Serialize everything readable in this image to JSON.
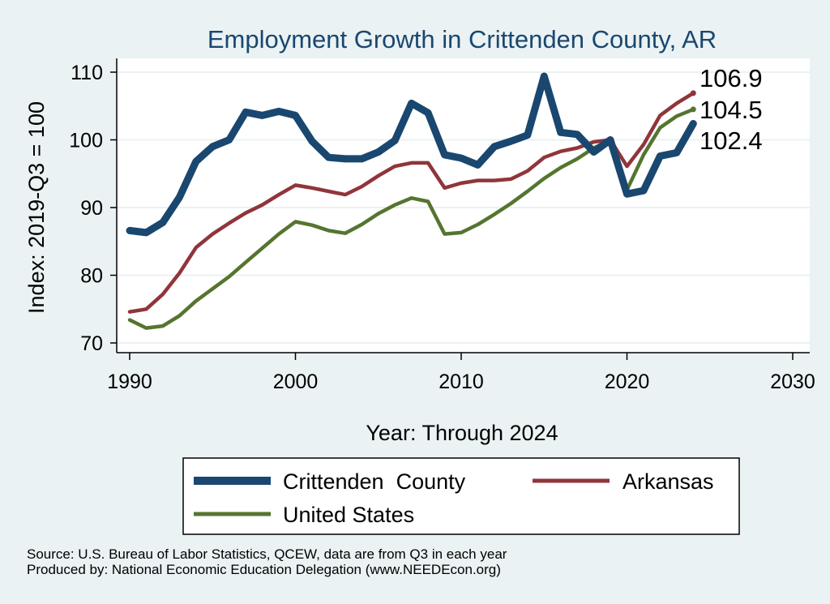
{
  "chart_data": {
    "type": "line",
    "title": "Employment Growth in Crittenden County, AR",
    "xlabel": "Year: Through 2024",
    "ylabel": "Index: 2019-Q3 = 100",
    "xlim": [
      1990,
      2030
    ],
    "ylim": [
      70,
      110
    ],
    "xticks": [
      1990,
      2000,
      2010,
      2020,
      2030
    ],
    "yticks": [
      70,
      80,
      90,
      100,
      110
    ],
    "grid": true,
    "legend_position": "bottom",
    "x": [
      1990,
      1991,
      1992,
      1993,
      1994,
      1995,
      1996,
      1997,
      1998,
      1999,
      2000,
      2001,
      2002,
      2003,
      2004,
      2005,
      2006,
      2007,
      2008,
      2009,
      2010,
      2011,
      2012,
      2013,
      2014,
      2015,
      2016,
      2017,
      2018,
      2019,
      2020,
      2021,
      2022,
      2023,
      2024
    ],
    "series": [
      {
        "name": "Crittenden  County",
        "color": "#1a476f",
        "values": [
          86.6,
          86.3,
          87.8,
          91.5,
          96.8,
          99.0,
          100.0,
          104.1,
          103.6,
          104.2,
          103.6,
          99.8,
          97.4,
          97.2,
          97.2,
          98.2,
          99.9,
          105.4,
          104.0,
          97.8,
          97.3,
          96.3,
          99.0,
          99.8,
          100.7,
          109.4,
          101.1,
          100.8,
          98.2,
          100.0,
          92.0,
          92.5,
          97.6,
          98.1,
          102.4
        ],
        "end_label": "102.4"
      },
      {
        "name": "Arkansas",
        "color": "#90353b",
        "values": [
          74.6,
          75.0,
          77.2,
          80.3,
          84.1,
          86.1,
          87.7,
          89.2,
          90.4,
          91.9,
          93.3,
          92.9,
          92.4,
          91.9,
          93.1,
          94.7,
          96.1,
          96.6,
          96.6,
          92.9,
          93.6,
          94.0,
          94.0,
          94.2,
          95.4,
          97.4,
          98.3,
          98.8,
          99.7,
          100.0,
          96.1,
          99.3,
          103.6,
          105.4,
          106.9
        ],
        "end_label": "106.9"
      },
      {
        "name": "United States",
        "color": "#55752f",
        "values": [
          73.4,
          72.2,
          72.5,
          74.0,
          76.2,
          78.0,
          79.8,
          81.9,
          84.0,
          86.1,
          87.9,
          87.4,
          86.6,
          86.2,
          87.5,
          89.1,
          90.4,
          91.4,
          90.9,
          86.1,
          86.3,
          87.5,
          89.0,
          90.6,
          92.4,
          94.3,
          95.9,
          97.2,
          98.8,
          100.0,
          92.6,
          97.8,
          101.8,
          103.5,
          104.5
        ],
        "end_label": "104.5"
      }
    ]
  },
  "source_line": "Source: U.S. Bureau of Labor Statistics, QCEW, data are from Q3 in each year",
  "produced_line": "Produced by: National Economic Education Delegation (www.NEEDEcon.org)"
}
